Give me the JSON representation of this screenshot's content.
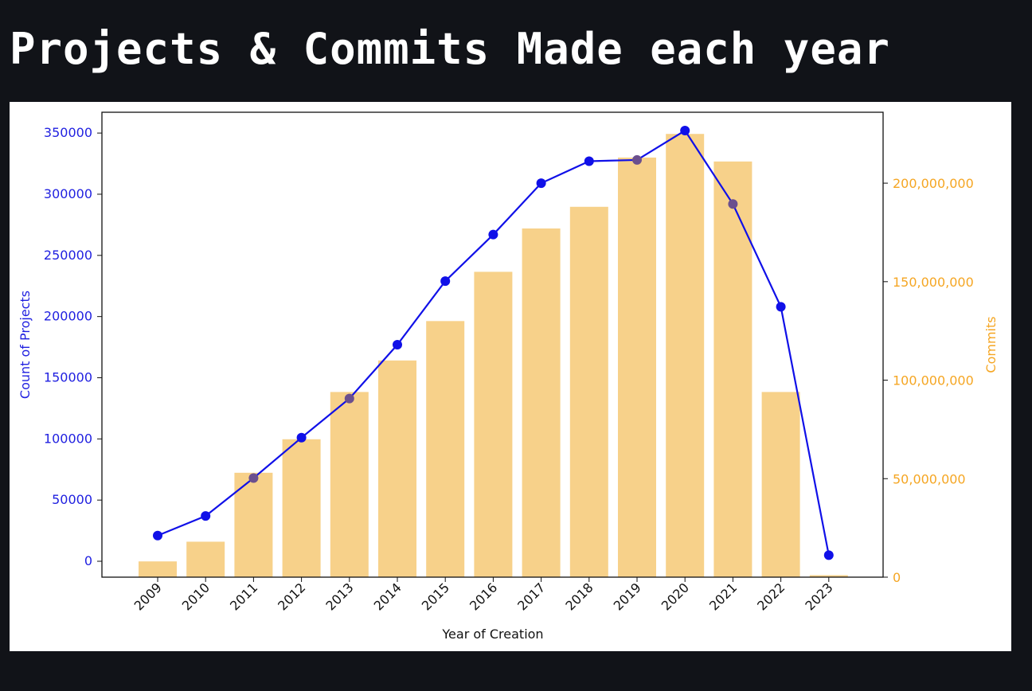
{
  "page": {
    "title": "Projects & Commits Made each year"
  },
  "chart_data": {
    "type": "bar",
    "title": "",
    "xlabel": "Year of Creation",
    "ylabel_left": "Count of Projects",
    "ylabel_right": "Commits",
    "categories": [
      "2009",
      "2010",
      "2011",
      "2012",
      "2013",
      "2014",
      "2015",
      "2016",
      "2017",
      "2018",
      "2019",
      "2020",
      "2021",
      "2022",
      "2023"
    ],
    "series": [
      {
        "name": "Commits",
        "kind": "bar",
        "axis": "right",
        "color": "#f7d18a",
        "values": [
          8000000,
          18000000,
          53000000,
          70000000,
          94000000,
          110000000,
          130000000,
          155000000,
          177000000,
          188000000,
          213000000,
          225000000,
          211000000,
          94000000,
          1000000
        ]
      },
      {
        "name": "Count of Projects",
        "kind": "line",
        "axis": "left",
        "color": "#1010e8",
        "values": [
          21000,
          37000,
          68000,
          101000,
          133000,
          177000,
          229000,
          267000,
          309000,
          327000,
          328000,
          352000,
          292000,
          208000,
          5000
        ]
      }
    ],
    "left_axis": {
      "ylim": [
        -13000,
        367000
      ],
      "ticks": [
        "0",
        "50000",
        "100000",
        "150000",
        "200000",
        "250000",
        "300000",
        "350000"
      ],
      "tick_values": [
        0,
        50000,
        100000,
        150000,
        200000,
        250000,
        300000,
        350000
      ],
      "color": "#1f1fe0"
    },
    "right_axis": {
      "ylim": [
        0,
        236000000
      ],
      "ticks": [
        "0",
        "50,000,000",
        "100,000,000",
        "150,000,000",
        "200,000,000"
      ],
      "tick_values": [
        0,
        50000000,
        100000000,
        150000000,
        200000000
      ],
      "color": "#f5a623"
    },
    "grid": false,
    "legend": "none",
    "x_tick_rotation": "45 degrees"
  }
}
